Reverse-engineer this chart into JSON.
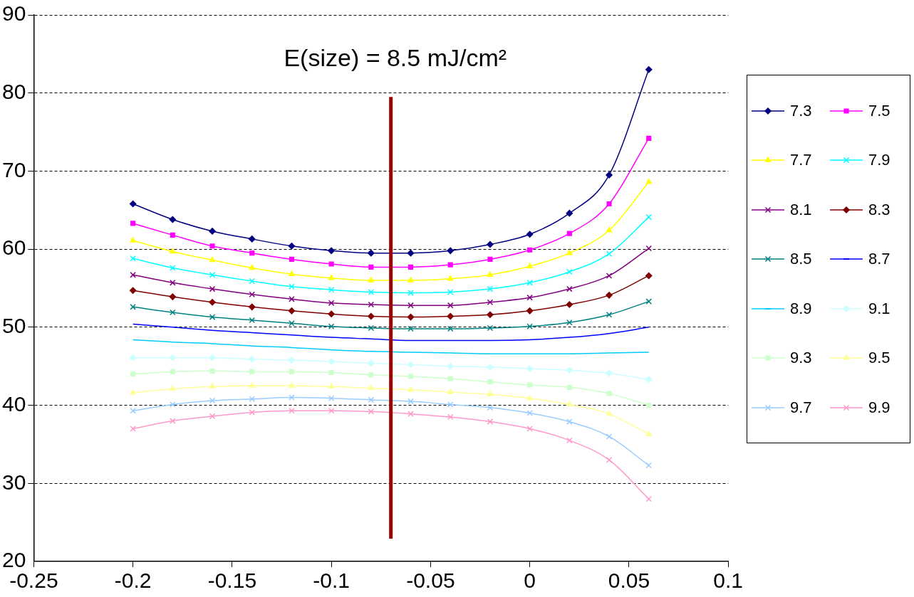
{
  "chart_data": {
    "type": "line",
    "x": [
      -0.2,
      -0.18,
      -0.16,
      -0.14,
      -0.12,
      -0.1,
      -0.08,
      -0.06,
      -0.04,
      -0.02,
      0,
      0.02,
      0.04,
      0.06
    ],
    "xlim": [
      -0.25,
      0.1
    ],
    "xticks": [
      -0.25,
      -0.2,
      -0.15,
      -0.1,
      -0.05,
      0,
      0.05,
      0.1
    ],
    "ylim": [
      20,
      90
    ],
    "yticks": [
      20,
      30,
      40,
      50,
      60,
      70,
      80,
      90
    ],
    "grid": "y",
    "legend": "right",
    "ref_lines": [
      {
        "axis": "x",
        "value": -0.07,
        "color": "#990000"
      }
    ],
    "annotations": [
      "E(size) = 8.5 mJ/cm²"
    ],
    "series": [
      {
        "name": "7.3",
        "color": "#000080",
        "marker": "diamond",
        "values": [
          65.8,
          63.8,
          62.3,
          61.3,
          60.4,
          59.8,
          59.5,
          59.5,
          59.8,
          60.6,
          61.9,
          64.6,
          69.5,
          83.0
        ]
      },
      {
        "name": "7.5",
        "color": "#ff00ff",
        "marker": "square",
        "values": [
          63.3,
          61.8,
          60.4,
          59.5,
          58.7,
          58.1,
          57.7,
          57.7,
          58.0,
          58.7,
          59.9,
          62.0,
          65.8,
          74.2
        ]
      },
      {
        "name": "7.7",
        "color": "#ffff00",
        "marker": "triangle",
        "values": [
          61.1,
          59.7,
          58.6,
          57.6,
          56.8,
          56.3,
          56.0,
          56.0,
          56.2,
          56.7,
          57.8,
          59.5,
          62.4,
          68.6
        ]
      },
      {
        "name": "7.9",
        "color": "#00ffff",
        "marker": "cross",
        "values": [
          58.8,
          57.6,
          56.7,
          55.9,
          55.2,
          54.8,
          54.5,
          54.4,
          54.5,
          54.9,
          55.7,
          57.1,
          59.4,
          64.1
        ]
      },
      {
        "name": "8.1",
        "color": "#800080",
        "marker": "cross",
        "values": [
          56.7,
          55.7,
          54.9,
          54.2,
          53.6,
          53.1,
          52.9,
          52.8,
          52.8,
          53.2,
          53.8,
          54.9,
          56.6,
          60.1
        ]
      },
      {
        "name": "8.3",
        "color": "#800000",
        "marker": "diamond",
        "values": [
          54.7,
          53.9,
          53.2,
          52.6,
          52.1,
          51.7,
          51.4,
          51.3,
          51.4,
          51.6,
          52.1,
          52.9,
          54.1,
          56.6
        ]
      },
      {
        "name": "8.5",
        "color": "#008080",
        "marker": "cross",
        "values": [
          52.6,
          51.9,
          51.3,
          50.9,
          50.5,
          50.1,
          49.9,
          49.8,
          49.8,
          49.9,
          50.1,
          50.6,
          51.6,
          53.3
        ]
      },
      {
        "name": "8.7",
        "color": "#0000ff",
        "marker": "none",
        "values": [
          50.4,
          50.0,
          49.6,
          49.3,
          49.0,
          48.7,
          48.5,
          48.3,
          48.3,
          48.3,
          48.4,
          48.7,
          49.2,
          50.0
        ]
      },
      {
        "name": "8.9",
        "color": "#00ccff",
        "marker": "none",
        "values": [
          48.4,
          48.1,
          47.9,
          47.6,
          47.4,
          47.1,
          46.9,
          46.8,
          46.7,
          46.6,
          46.6,
          46.6,
          46.7,
          46.8
        ]
      },
      {
        "name": "9.1",
        "color": "#ccffff",
        "marker": "diamond",
        "values": [
          46.1,
          46.1,
          46.1,
          45.9,
          45.8,
          45.6,
          45.4,
          45.2,
          45.0,
          44.9,
          44.7,
          44.5,
          44.1,
          43.3
        ]
      },
      {
        "name": "9.3",
        "color": "#ccffcc",
        "marker": "square",
        "values": [
          44.0,
          44.3,
          44.4,
          44.3,
          44.3,
          44.2,
          43.9,
          43.7,
          43.4,
          43.0,
          42.6,
          42.3,
          41.5,
          40.0
        ]
      },
      {
        "name": "9.5",
        "color": "#ffff99",
        "marker": "triangle",
        "values": [
          41.6,
          42.1,
          42.4,
          42.5,
          42.5,
          42.4,
          42.2,
          42.0,
          41.7,
          41.4,
          40.9,
          40.1,
          38.9,
          36.3
        ]
      },
      {
        "name": "9.7",
        "color": "#99ccff",
        "marker": "cross",
        "values": [
          39.3,
          40.1,
          40.6,
          40.8,
          41.0,
          40.9,
          40.7,
          40.5,
          40.1,
          39.7,
          39.0,
          37.9,
          36.0,
          32.3
        ]
      },
      {
        "name": "9.9",
        "color": "#ff99cc",
        "marker": "cross",
        "values": [
          37.0,
          38.0,
          38.6,
          39.1,
          39.3,
          39.3,
          39.2,
          38.9,
          38.5,
          37.9,
          37.0,
          35.5,
          33.0,
          28.0
        ]
      }
    ]
  }
}
